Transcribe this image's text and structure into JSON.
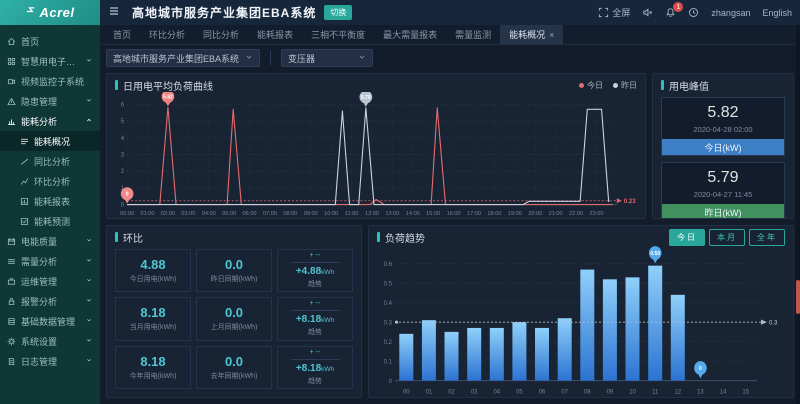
{
  "header": {
    "logo_text": "Acrel",
    "title": "高地城市服务产业集团EBA系统",
    "switch_label": "切换",
    "fullscreen_label": "全屏",
    "notification_count": "1",
    "username": "zhangsan",
    "language_label": "English"
  },
  "tabs": {
    "items": [
      {
        "key": "home",
        "label": "首页"
      },
      {
        "key": "mom-analysis",
        "label": "环比分析"
      },
      {
        "key": "yoy-analysis",
        "label": "同比分析"
      },
      {
        "key": "energy-report",
        "label": "能耗报表"
      },
      {
        "key": "three-phase-unbalance",
        "label": "三相不平衡度"
      },
      {
        "key": "max-demand-report",
        "label": "最大需量报表"
      },
      {
        "key": "demand-monitor",
        "label": "需量监测"
      },
      {
        "key": "energy-overview",
        "label": "能耗概况",
        "active": true,
        "closable": true
      }
    ]
  },
  "filters": {
    "org_select": {
      "value": "高地城市服务产业集团EBA系统"
    },
    "device_select": {
      "value": "变压器"
    }
  },
  "sidebar": {
    "items": [
      {
        "key": "home",
        "label": "首页",
        "icon": "home"
      },
      {
        "key": "smart-power-subsystem",
        "label": "智慧用电子系统",
        "icon": "grid",
        "chevron": "down"
      },
      {
        "key": "video-monitor-subsystem",
        "label": "视频监控子系统",
        "icon": "video"
      },
      {
        "key": "hazard-management",
        "label": "隐患管理",
        "icon": "warning",
        "chevron": "down"
      },
      {
        "key": "energy-analysis",
        "label": "能耗分析",
        "icon": "chart",
        "chevron": "up",
        "active": true,
        "children": [
          {
            "key": "energy-overview",
            "label": "能耗概况",
            "icon": "list",
            "active": true
          },
          {
            "key": "yoy-analysis",
            "label": "同比分析",
            "icon": "line"
          },
          {
            "key": "mom-analysis",
            "label": "环比分析",
            "icon": "zigzag"
          },
          {
            "key": "energy-report",
            "label": "能耗报表",
            "icon": "report"
          },
          {
            "key": "energy-forecast",
            "label": "能耗预测",
            "icon": "check"
          }
        ]
      },
      {
        "key": "power-quality",
        "label": "电能质量",
        "icon": "calendar",
        "chevron": "down"
      },
      {
        "key": "demand-analysis",
        "label": "需量分析",
        "icon": "menu",
        "chevron": "down"
      },
      {
        "key": "ops-management",
        "label": "运维管理",
        "icon": "box",
        "chevron": "down"
      },
      {
        "key": "alarm-analysis",
        "label": "报警分析",
        "icon": "lock",
        "chevron": "down"
      },
      {
        "key": "basic-data-management",
        "label": "基础数据管理",
        "icon": "db",
        "chevron": "down"
      },
      {
        "key": "system-settings",
        "label": "系统设置",
        "icon": "gear",
        "chevron": "down"
      },
      {
        "key": "log-management",
        "label": "日志管理",
        "icon": "doc",
        "chevron": "down"
      }
    ]
  },
  "panels": {
    "load_curve": {
      "title": "日用电平均负荷曲线"
    },
    "peak": {
      "title": "用电峰值",
      "cards": [
        {
          "value": "5.82",
          "time": "2020-04-28 02:00",
          "label": "今日(kW)",
          "accent": "#3d7fc4"
        },
        {
          "value": "5.79",
          "time": "2020-04-27 11:45",
          "label": "昨日(kW)",
          "accent": "#41915f"
        }
      ]
    },
    "ratio": {
      "title": "环比",
      "rows": [
        {
          "current": {
            "value": "4.88",
            "label": "今日用电(kWh)"
          },
          "previous": {
            "value": "0.0",
            "label": "昨日同期(kWh)"
          },
          "trend": {
            "top": "+ --",
            "delta": "+4.88",
            "unit": "kWh",
            "label": "趋势"
          }
        },
        {
          "current": {
            "value": "8.18",
            "label": "当月用电(kWh)"
          },
          "previous": {
            "value": "0.0",
            "label": "上月同期(kWh)"
          },
          "trend": {
            "top": "+ --",
            "delta": "+8.18",
            "unit": "kWh",
            "label": "趋势"
          }
        },
        {
          "current": {
            "value": "8.18",
            "label": "今年用电(kWh)"
          },
          "previous": {
            "value": "0.0",
            "label": "去年同期(kWh)"
          },
          "trend": {
            "top": "+ --",
            "delta": "+8.18",
            "unit": "kWh",
            "label": "趋势"
          }
        }
      ]
    },
    "trend": {
      "title": "负荷趋势",
      "buttons": [
        {
          "key": "today",
          "label": "今日",
          "active": true
        },
        {
          "key": "month",
          "label": "本月"
        },
        {
          "key": "year",
          "label": "全年"
        }
      ]
    }
  },
  "chart_data": [
    {
      "id": "daily_load_curve",
      "type": "line",
      "title": "日用电平均负荷曲线",
      "xlim": [
        0,
        24
      ],
      "ylim": [
        0,
        6
      ],
      "y_ticks": [
        0,
        1,
        2,
        3,
        4,
        5,
        6
      ],
      "x_ticks": [
        "00:00",
        "01:00",
        "02:00",
        "03:00",
        "04:00",
        "05:00",
        "06:00",
        "07:00",
        "08:00",
        "09:00",
        "10:00",
        "11:00",
        "12:00",
        "13:00",
        "14:00",
        "15:00",
        "16:00",
        "17:00",
        "18:00",
        "19:00",
        "20:00",
        "21:00",
        "22:00",
        "23:00"
      ],
      "grid": true,
      "legend_position": "top-right",
      "average_line": {
        "value": 0.23,
        "label": "0.23",
        "color": "#e3646d"
      },
      "series": [
        {
          "name": "今日",
          "color": "#e36d6d",
          "points": [
            [
              0,
              0
            ],
            [
              1.6,
              0
            ],
            [
              2.0,
              5.82
            ],
            [
              2.4,
              0
            ],
            [
              4.9,
              0
            ],
            [
              5.2,
              5.7
            ],
            [
              5.6,
              0
            ],
            [
              11.9,
              0
            ],
            [
              12.2,
              0.3
            ],
            [
              12.6,
              0
            ],
            [
              14.9,
              0
            ],
            [
              15.2,
              5.8
            ],
            [
              15.6,
              0
            ],
            [
              23.8,
              0
            ]
          ]
        },
        {
          "name": "昨日",
          "color": "#c9d2dd",
          "points": [
            [
              0,
              0
            ],
            [
              10.2,
              0
            ],
            [
              10.55,
              5.6
            ],
            [
              10.9,
              0
            ],
            [
              11.35,
              0
            ],
            [
              11.7,
              5.79
            ],
            [
              12.1,
              0
            ],
            [
              19.4,
              0
            ],
            [
              19.7,
              0.2
            ],
            [
              22.2,
              0.2
            ],
            [
              22.55,
              5.7
            ],
            [
              23.25,
              5.7
            ],
            [
              23.6,
              0.15
            ]
          ]
        }
      ],
      "markers": [
        {
          "x": 0,
          "y": 0,
          "label": "0",
          "color": "#f08a8a"
        },
        {
          "x": 2.0,
          "y": 5.82,
          "label": "5.82",
          "color": "#ef8181"
        },
        {
          "x": 11.7,
          "y": 5.79,
          "label": "5.79",
          "color": "#b9c4d0"
        }
      ]
    },
    {
      "id": "load_trend",
      "type": "bar",
      "title": "负荷趋势",
      "categories": [
        "00",
        "01",
        "02",
        "03",
        "04",
        "05",
        "06",
        "07",
        "08",
        "09",
        "10",
        "11",
        "12",
        "13",
        "14",
        "15"
      ],
      "values": [
        0.24,
        0.31,
        0.25,
        0.27,
        0.27,
        0.3,
        0.27,
        0.32,
        0.57,
        0.52,
        0.53,
        0.59,
        0.44,
        0,
        null,
        null
      ],
      "ylim": [
        0,
        0.6
      ],
      "y_ticks": [
        0,
        0.1,
        0.2,
        0.3,
        0.4,
        0.5,
        0.6
      ],
      "grid": true,
      "average_line": {
        "value": 0.3,
        "label": "0.3",
        "color": "#aeb9c8"
      },
      "markers": [
        {
          "index": 11,
          "label": "0.59"
        },
        {
          "index": 13,
          "label": "0"
        }
      ],
      "bar_color_top": "#8fd0fa",
      "bar_color_bottom": "#2c73d2",
      "marker_color": "#55aaec"
    }
  ],
  "colors": {
    "accent_teal": "#2aa79b",
    "title_accent": "#26c6bd",
    "today_line": "#e36d6d",
    "yesterday_line": "#c9d2dd",
    "value_cyan": "#4fc6d4",
    "card_blue": "#3d7fc4",
    "card_green": "#41915f",
    "scroll_thumb": "#bf554b"
  }
}
